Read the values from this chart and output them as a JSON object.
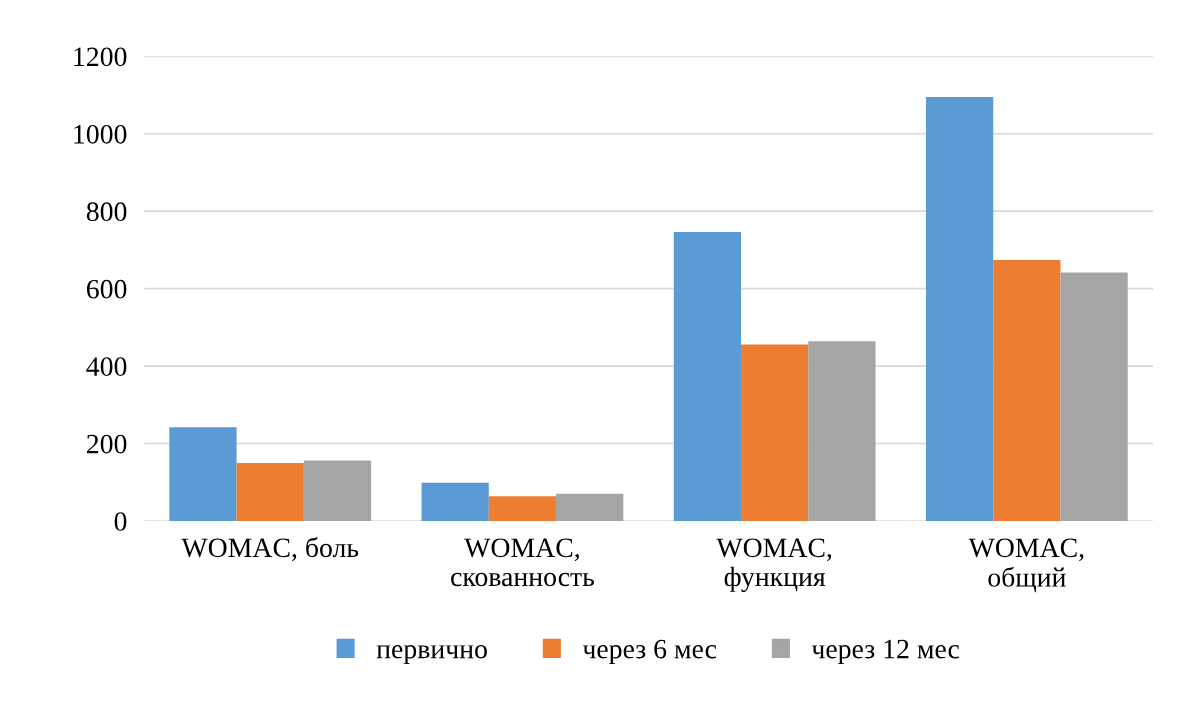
{
  "chart_data": {
    "type": "bar",
    "categories": [
      "WOMAC, боль",
      "WOMAC,\nскованность",
      "WOMAC,\nфункция",
      "WOMAC,\nобщий"
    ],
    "series": [
      {
        "name": "первично",
        "color": "#5b9bd5",
        "values": [
          242,
          99,
          746,
          1095
        ]
      },
      {
        "name": "через 6 мес",
        "color": "#ed7d31",
        "values": [
          150,
          64,
          456,
          674
        ]
      },
      {
        "name": "через 12 мес",
        "color": "#a5a5a5",
        "values": [
          156,
          70,
          464,
          642
        ]
      }
    ],
    "ylim": [
      0,
      1200
    ],
    "yticks": [
      0,
      200,
      400,
      600,
      800,
      1000,
      1200
    ],
    "grid": "y",
    "legend": "bottom"
  }
}
